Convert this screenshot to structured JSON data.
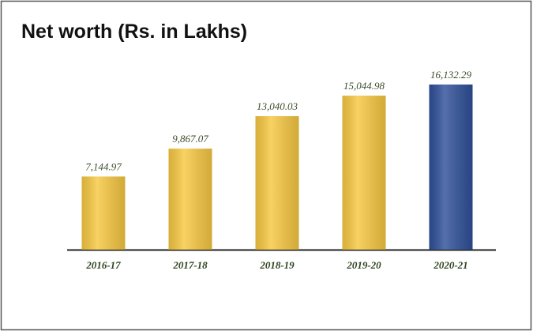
{
  "chart_data": {
    "type": "bar",
    "title": "Net worth (Rs. in Lakhs)",
    "categories": [
      "2016-17",
      "2017-18",
      "2018-19",
      "2019-20",
      "2020-21"
    ],
    "values": [
      7144.97,
      9867.07,
      13040.03,
      15044.98,
      16132.29
    ],
    "value_labels": [
      "7,144.97",
      "9,867.07",
      "13,040.03",
      "15,044.98",
      "16,132.29"
    ],
    "colors": [
      "#f7c842",
      "#f7c842",
      "#f7c842",
      "#f7c842",
      "#2f5099"
    ]
  }
}
